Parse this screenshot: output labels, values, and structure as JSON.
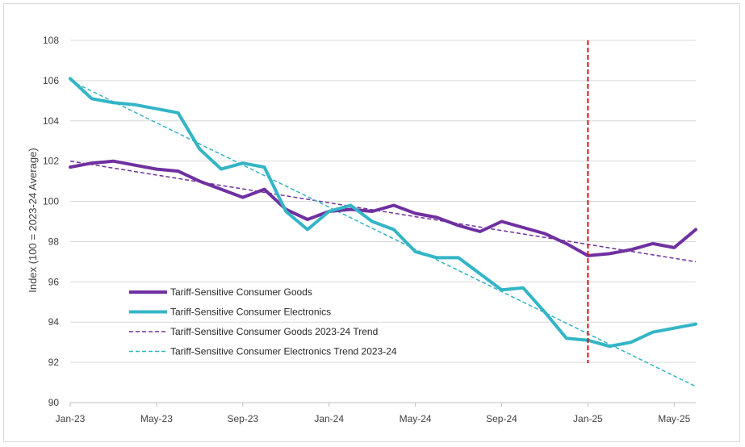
{
  "chart_data": {
    "type": "line",
    "title": "",
    "xlabel": "",
    "ylabel": "Index (100 = 2023-24 Average)",
    "ylim": [
      90,
      108
    ],
    "yticks": [
      90,
      92,
      94,
      96,
      98,
      100,
      102,
      104,
      106,
      108
    ],
    "ytick_labels": [
      "90",
      "92",
      "94",
      "96",
      "98",
      "100",
      "102",
      "104",
      "106",
      "108"
    ],
    "x_start": 0,
    "x_end": 29,
    "xticks": [
      0,
      4,
      8,
      12,
      16,
      20,
      24,
      28
    ],
    "xtick_labels": [
      "Jan-23",
      "May-23",
      "Sep-23",
      "Jan-24",
      "May-24",
      "Sep-24",
      "Jan-25",
      "May-25"
    ],
    "grid": "horizontal",
    "legend_position": "lower-left",
    "vertical_marker": {
      "x": 24,
      "label": "Jan-25",
      "color": "#e0101a"
    },
    "series": [
      {
        "name": "Tariff-Sensitive Consumer Goods",
        "style": "solid",
        "color": "#7030a0",
        "x": [
          0,
          1,
          2,
          3,
          4,
          5,
          6,
          7,
          8,
          9,
          10,
          11,
          12,
          13,
          14,
          15,
          16,
          17,
          18,
          19,
          20,
          21,
          22,
          23,
          24,
          25,
          26,
          27,
          28,
          29
        ],
        "values": [
          101.7,
          101.9,
          102.0,
          101.8,
          101.6,
          101.5,
          101.0,
          100.6,
          100.2,
          100.6,
          99.6,
          99.1,
          99.5,
          99.6,
          99.5,
          99.8,
          99.4,
          99.2,
          98.8,
          98.5,
          99.0,
          98.7,
          98.4,
          97.9,
          97.3,
          97.4,
          97.6,
          97.9,
          97.7,
          98.6
        ]
      },
      {
        "name": "Tariff-Sensitive Consumer Electronics",
        "style": "solid",
        "color": "#33b5c6",
        "x": [
          0,
          1,
          2,
          3,
          4,
          5,
          6,
          7,
          8,
          9,
          10,
          11,
          12,
          13,
          14,
          15,
          16,
          17,
          18,
          19,
          20,
          21,
          22,
          23,
          24,
          25,
          26,
          27,
          28,
          29
        ],
        "values": [
          106.1,
          105.1,
          104.9,
          104.8,
          104.6,
          104.4,
          102.6,
          101.6,
          101.9,
          101.7,
          99.5,
          98.6,
          99.5,
          99.8,
          99.0,
          98.6,
          97.5,
          97.2,
          97.2,
          96.4,
          95.6,
          95.7,
          94.5,
          93.2,
          93.1,
          92.8,
          93.0,
          93.5,
          93.7,
          93.9
        ]
      },
      {
        "name": "Tariff-Sensitive Consumer Goods 2023-24 Trend",
        "style": "dashed",
        "color": "#7030a0",
        "x": [
          0,
          29
        ],
        "values": [
          102.0,
          97.0
        ]
      },
      {
        "name": "Tariff-Sensitive Consumer Electronics Trend 2023-24",
        "style": "dashed",
        "color": "#33b5c6",
        "x": [
          0,
          29
        ],
        "values": [
          106.0,
          90.8
        ]
      }
    ]
  }
}
